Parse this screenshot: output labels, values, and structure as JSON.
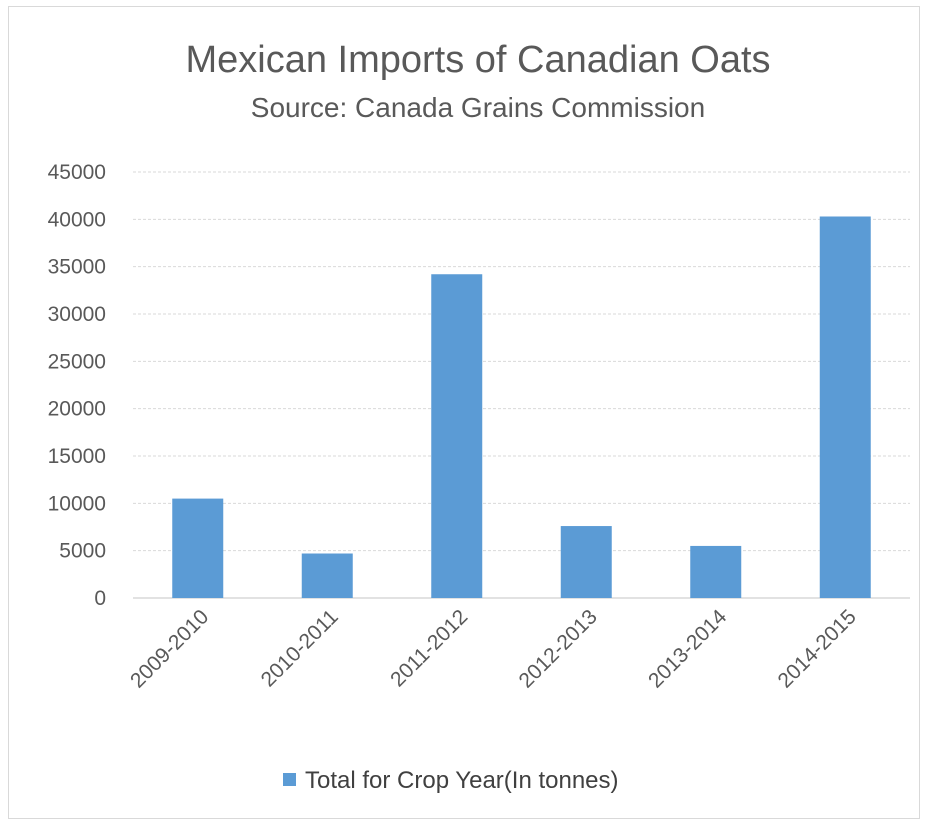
{
  "chart_data": {
    "type": "bar",
    "title": "Mexican Imports of Canadian Oats",
    "subtitle": "Source: Canada Grains Commission",
    "categories": [
      "2009-2010",
      "2010-2011",
      "2011-2012",
      "2012-2013",
      "2013-2014",
      "2014-2015"
    ],
    "series": [
      {
        "name": "Total for Crop Year(In tonnes)",
        "values": [
          10500,
          4700,
          34200,
          7600,
          5500,
          40300
        ],
        "color": "#5b9bd5"
      }
    ],
    "ylim": [
      0,
      45000
    ],
    "yticks": [
      "0",
      "5000",
      "10000",
      "15000",
      "20000",
      "25000",
      "30000",
      "35000",
      "40000",
      "45000"
    ],
    "xlabel": "",
    "ylabel": "",
    "grid": true,
    "legend_position": "bottom"
  }
}
